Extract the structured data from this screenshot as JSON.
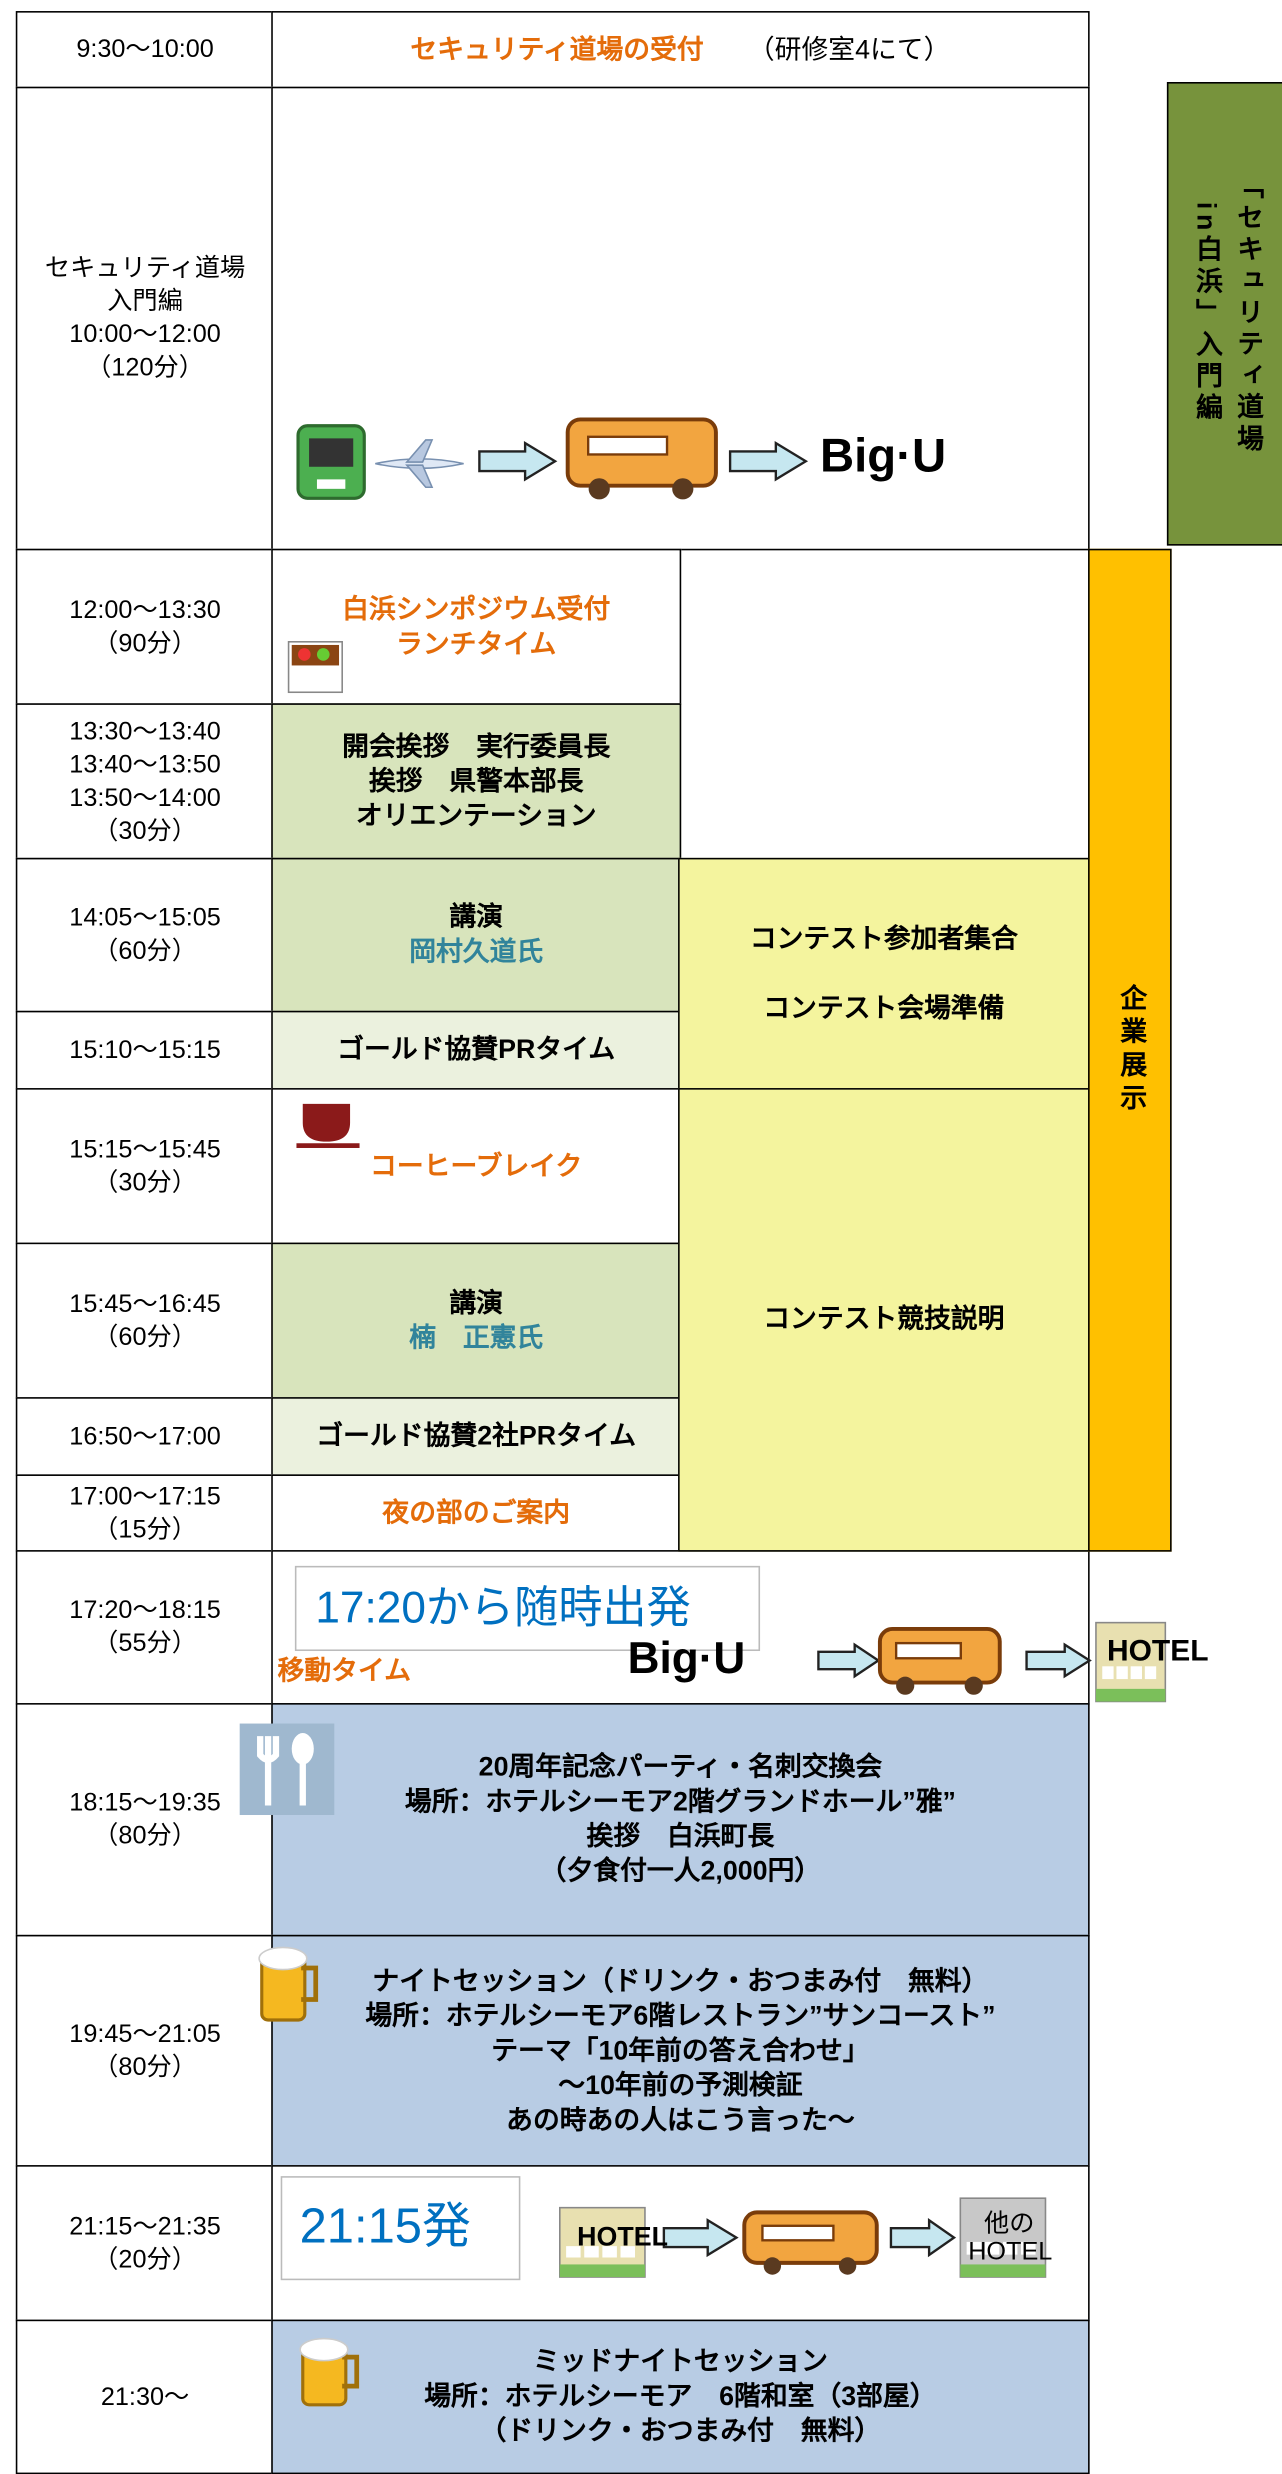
{
  "schedule": {
    "rows": [
      {
        "time": [
          "9:30〜10:00"
        ],
        "content": [
          "セキュリティ道場の受付",
          "（研修室4にて）"
        ]
      },
      {
        "time": [
          "セキュリティ道場",
          "入門編",
          "10:00〜12:00",
          "（120分）"
        ],
        "content": [
          "Big·U"
        ]
      },
      {
        "time": [
          "12:00〜13:30",
          "（90分）"
        ],
        "content": [
          "白浜シンポジウム受付",
          "ランチタイム"
        ]
      },
      {
        "time": [
          "13:30〜13:40",
          "13:40〜13:50",
          "13:50〜14:00",
          "（30分）"
        ],
        "content": [
          "開会挨拶　実行委員長",
          "挨拶　県警本部長",
          "オリエンテーション"
        ]
      },
      {
        "time": [
          "14:05〜15:05",
          "（60分）"
        ],
        "content": [
          "講演",
          "岡村久道氏"
        ]
      },
      {
        "time": [
          "15:10〜15:15"
        ],
        "content": [
          "ゴールド協賛PRタイム"
        ]
      },
      {
        "time": [
          "15:15〜15:45",
          "（30分）"
        ],
        "content": [
          "コーヒーブレイク"
        ]
      },
      {
        "time": [
          "15:45〜16:45",
          "（60分）"
        ],
        "content": [
          "講演",
          "楠　正憲氏"
        ]
      },
      {
        "time": [
          "16:50〜17:00"
        ],
        "content": [
          "ゴールド協賛2社PRタイム"
        ]
      },
      {
        "time": [
          "17:00〜17:15",
          "（15分）"
        ],
        "content": [
          "夜の部のご案内"
        ]
      },
      {
        "time": [
          "17:20〜18:15",
          "（55分）"
        ],
        "content": [
          "17:20から随時出発",
          "移動タイム",
          "Big·U",
          "HOTEL"
        ]
      },
      {
        "time": [
          "18:15〜19:35",
          "（80分）"
        ],
        "content": [
          "20周年記念パーティ・名刺交換会",
          "場所：ホテルシーモア2階グランドホール”雅”",
          "挨拶　白浜町長",
          "（夕食付一人2,000円）"
        ]
      },
      {
        "time": [
          "19:45〜21:05",
          "（80分）"
        ],
        "content": [
          "ナイトセッション（ドリンク・おつまみ付　無料）",
          "場所：ホテルシーモア6階レストラン”サンコースト”",
          "テーマ「10年前の答え合わせ」",
          "〜10年前の予測検証",
          "あの時あの人はこう言った〜"
        ]
      },
      {
        "time": [
          "21:15〜21:35",
          "（20分）"
        ],
        "content": [
          "21:15発",
          "HOTEL",
          "他の",
          "HOTEL"
        ]
      },
      {
        "time": [
          "21:30〜"
        ],
        "content": [
          "ミッドナイトセッション",
          "場所：ホテルシーモア　6階和室（3部屋）",
          "（ドリンク・おつまみ付　無料）"
        ]
      }
    ],
    "contest_prep": [
      "コンテスト参加者集合",
      "コンテスト会場準備"
    ],
    "contest_briefing": "コンテスト競技説明",
    "expo": "企業展示",
    "dojo_banner": [
      "「セキュリティ道場",
      "in白浜」入門編"
    ]
  }
}
